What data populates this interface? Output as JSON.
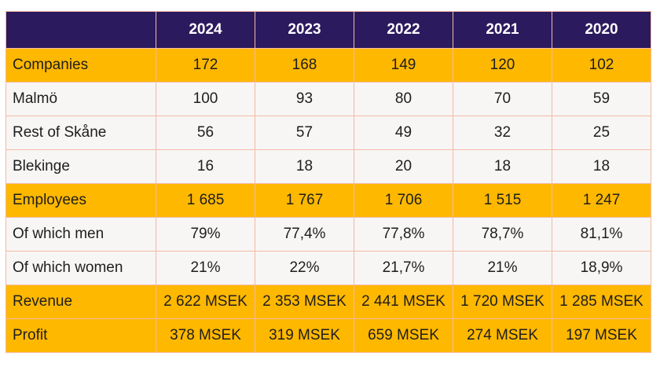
{
  "table": {
    "header": {
      "label": "",
      "years": [
        "2024",
        "2023",
        "2022",
        "2021",
        "2020"
      ]
    },
    "rows": [
      {
        "label": "Companies",
        "highlight": true,
        "values": [
          "172",
          "168",
          "149",
          "120",
          "102"
        ]
      },
      {
        "label": "Malmö",
        "highlight": false,
        "values": [
          "100",
          "93",
          "80",
          "70",
          "59"
        ]
      },
      {
        "label": "Rest of Skåne",
        "highlight": false,
        "values": [
          "56",
          "57",
          "49",
          "32",
          "25"
        ]
      },
      {
        "label": "Blekinge",
        "highlight": false,
        "values": [
          "16",
          "18",
          "20",
          "18",
          "18"
        ]
      },
      {
        "label": "Employees",
        "highlight": true,
        "values": [
          "1 685",
          "1 767",
          "1 706",
          "1 515",
          "1 247"
        ]
      },
      {
        "label": "Of which men",
        "highlight": false,
        "values": [
          "79%",
          "77,4%",
          "77,8%",
          "78,7%",
          "81,1%"
        ]
      },
      {
        "label": "Of which women",
        "highlight": false,
        "values": [
          "21%",
          "22%",
          "21,7%",
          "21%",
          "18,9%"
        ]
      },
      {
        "label": "Revenue",
        "highlight": true,
        "values": [
          "2 622 MSEK",
          "2 353 MSEK",
          "2 441 MSEK",
          "1 720 MSEK",
          "1 285 MSEK"
        ]
      },
      {
        "label": "Profit",
        "highlight": true,
        "values": [
          "378 MSEK",
          "319 MSEK",
          "659 MSEK",
          "274 MSEK",
          "197 MSEK"
        ]
      }
    ]
  },
  "colors": {
    "header_bg": "#2c1a5e",
    "highlight_bg": "#ffb800",
    "plain_bg": "#f7f6f4",
    "grid_line": "#f4b9a5"
  }
}
